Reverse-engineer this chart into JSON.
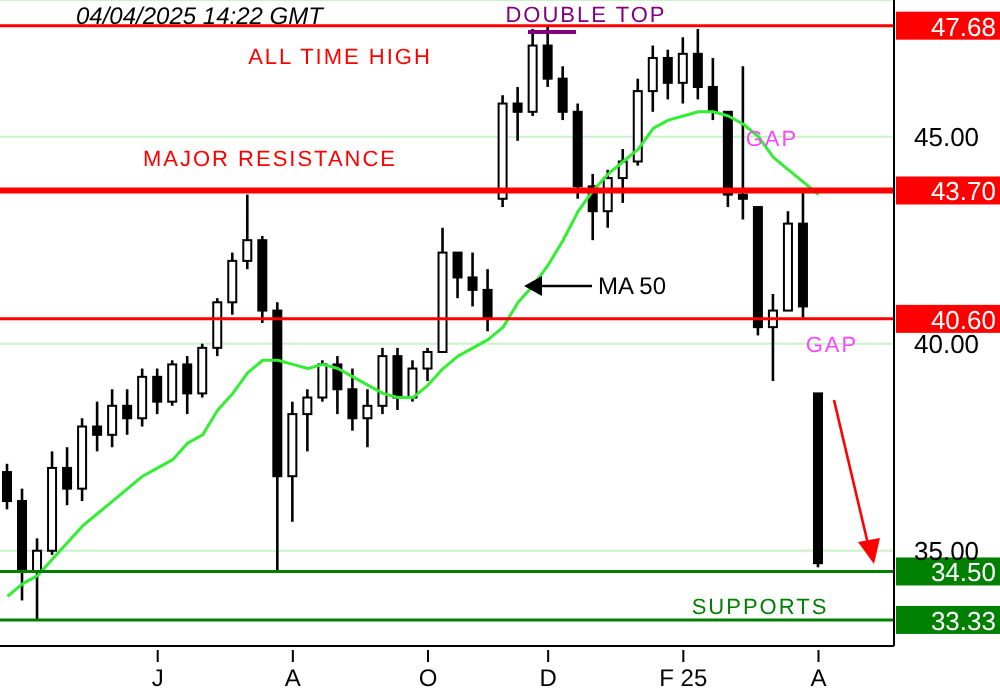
{
  "chart_data": {
    "type": "candlestick",
    "subtitle": "04/04/2025 14:22 GMT",
    "color": "#000000",
    "categories": [
      null,
      null,
      null,
      null,
      null,
      null,
      null,
      null,
      null,
      null,
      "J",
      null,
      null,
      null,
      null,
      null,
      null,
      null,
      null,
      "A",
      null,
      null,
      null,
      null,
      null,
      null,
      null,
      null,
      "O",
      null,
      null,
      null,
      null,
      null,
      null,
      null,
      "D",
      null,
      null,
      null,
      null,
      null,
      null,
      null,
      null,
      "F 25",
      null,
      null,
      null,
      null,
      null,
      null,
      null,
      null,
      "A"
    ],
    "ohlc": [
      [
        36.9,
        37.1,
        36.0,
        36.2
      ],
      [
        36.2,
        36.5,
        33.8,
        34.5
      ],
      [
        34.5,
        35.3,
        33.33,
        35.0
      ],
      [
        35.0,
        37.4,
        34.9,
        37.0
      ],
      [
        37.0,
        37.5,
        36.1,
        36.5
      ],
      [
        36.5,
        38.2,
        36.2,
        38.0
      ],
      [
        38.0,
        38.6,
        37.4,
        37.8
      ],
      [
        37.8,
        38.9,
        37.5,
        38.5
      ],
      [
        38.5,
        38.9,
        37.8,
        38.2
      ],
      [
        38.2,
        39.4,
        38.0,
        39.2
      ],
      [
        39.2,
        39.4,
        38.3,
        38.6
      ],
      [
        38.6,
        39.6,
        38.5,
        39.5
      ],
      [
        39.5,
        39.7,
        38.3,
        38.8
      ],
      [
        38.8,
        40.0,
        38.7,
        39.9
      ],
      [
        39.9,
        41.1,
        39.7,
        41.0
      ],
      [
        41.0,
        42.2,
        40.7,
        42.0
      ],
      [
        42.0,
        43.6,
        41.8,
        42.5
      ],
      [
        42.5,
        42.6,
        40.5,
        40.8
      ],
      [
        40.8,
        41.0,
        34.5,
        36.8
      ],
      [
        36.8,
        38.6,
        35.7,
        38.3
      ],
      [
        38.3,
        38.9,
        37.4,
        38.7
      ],
      [
        38.7,
        39.6,
        38.6,
        39.5
      ],
      [
        39.5,
        39.7,
        38.3,
        38.9
      ],
      [
        38.9,
        39.4,
        37.9,
        38.2
      ],
      [
        38.2,
        38.9,
        37.5,
        38.5
      ],
      [
        38.5,
        39.9,
        38.3,
        39.7
      ],
      [
        39.7,
        39.9,
        38.4,
        38.7
      ],
      [
        38.7,
        39.6,
        38.6,
        39.4
      ],
      [
        39.4,
        39.9,
        39.1,
        39.8
      ],
      [
        39.8,
        42.8,
        39.8,
        42.2
      ],
      [
        42.2,
        42.2,
        41.1,
        41.6
      ],
      [
        41.6,
        42.2,
        40.9,
        41.3
      ],
      [
        41.3,
        41.8,
        40.3,
        40.6
      ],
      [
        43.5,
        46.0,
        43.3,
        45.8
      ],
      [
        45.8,
        46.2,
        44.9,
        45.6
      ],
      [
        45.6,
        47.6,
        45.5,
        47.2
      ],
      [
        47.2,
        47.68,
        46.2,
        46.4
      ],
      [
        46.4,
        46.7,
        45.4,
        45.6
      ],
      [
        45.6,
        45.8,
        43.5,
        43.8
      ],
      [
        43.8,
        44.1,
        42.5,
        43.2
      ],
      [
        43.2,
        44.2,
        42.8,
        44.0
      ],
      [
        44.0,
        44.7,
        43.4,
        44.4
      ],
      [
        44.4,
        46.4,
        44.3,
        46.1
      ],
      [
        46.1,
        47.2,
        45.6,
        46.9
      ],
      [
        46.9,
        47.1,
        45.9,
        46.3
      ],
      [
        46.3,
        47.4,
        45.8,
        47.0
      ],
      [
        47.0,
        47.6,
        45.9,
        46.2
      ],
      [
        46.2,
        46.9,
        45.4,
        45.6
      ],
      [
        45.6,
        45.6,
        43.3,
        43.6
      ],
      [
        43.6,
        46.7,
        43.0,
        43.5
      ],
      [
        43.3,
        43.3,
        40.2,
        40.4
      ],
      [
        40.4,
        41.2,
        39.1,
        40.8
      ],
      [
        40.8,
        43.2,
        40.8,
        42.9
      ],
      [
        42.9,
        43.64,
        40.6,
        40.9
      ],
      [
        38.8,
        38.8,
        34.6,
        34.7
      ]
    ],
    "series": [
      {
        "type": "line",
        "name": "MA 50",
        "color": "#33ee33",
        "values": [
          33.9,
          34.2,
          34.4,
          34.8,
          35.2,
          35.6,
          35.9,
          36.2,
          36.5,
          36.8,
          37.0,
          37.2,
          37.6,
          37.8,
          38.4,
          38.8,
          39.3,
          39.6,
          39.6,
          39.5,
          39.4,
          39.5,
          39.4,
          39.2,
          39.0,
          38.8,
          38.7,
          38.7,
          39.0,
          39.4,
          39.7,
          39.9,
          40.1,
          40.4,
          41.0,
          41.4,
          41.9,
          42.5,
          43.2,
          43.7,
          44.1,
          44.4,
          44.7,
          45.2,
          45.4,
          45.5,
          45.6,
          45.6,
          45.5,
          45.3,
          45.0,
          44.5,
          44.2,
          43.9,
          43.6
        ]
      }
    ],
    "ylim": [
      32.7,
      48.3
    ],
    "yticks": [
      {
        "value": 35,
        "label": "35.00"
      },
      {
        "value": 40,
        "label": "40.00"
      },
      {
        "value": 45,
        "label": "45.00"
      }
    ],
    "grid": "y",
    "ref_lines": [
      {
        "axis": "y",
        "value": 47.68,
        "label": "47.68",
        "color": "#ff0000"
      },
      {
        "axis": "y",
        "value": 43.7,
        "label": "43.70",
        "color": "#ff0000"
      },
      {
        "axis": "y",
        "value": 40.6,
        "label": "40.60",
        "color": "#ff0000"
      },
      {
        "axis": "y",
        "value": 34.5,
        "label": "34.50",
        "color": "#008000"
      },
      {
        "axis": "y",
        "value": 33.33,
        "label": "33.33",
        "color": "#008000"
      }
    ],
    "annotations": [
      "ALL TIME HIGH",
      "DOUBLE TOP",
      "MAJOR RESISTANCE",
      "GAP",
      "GAP",
      "SUPPORTS"
    ]
  }
}
